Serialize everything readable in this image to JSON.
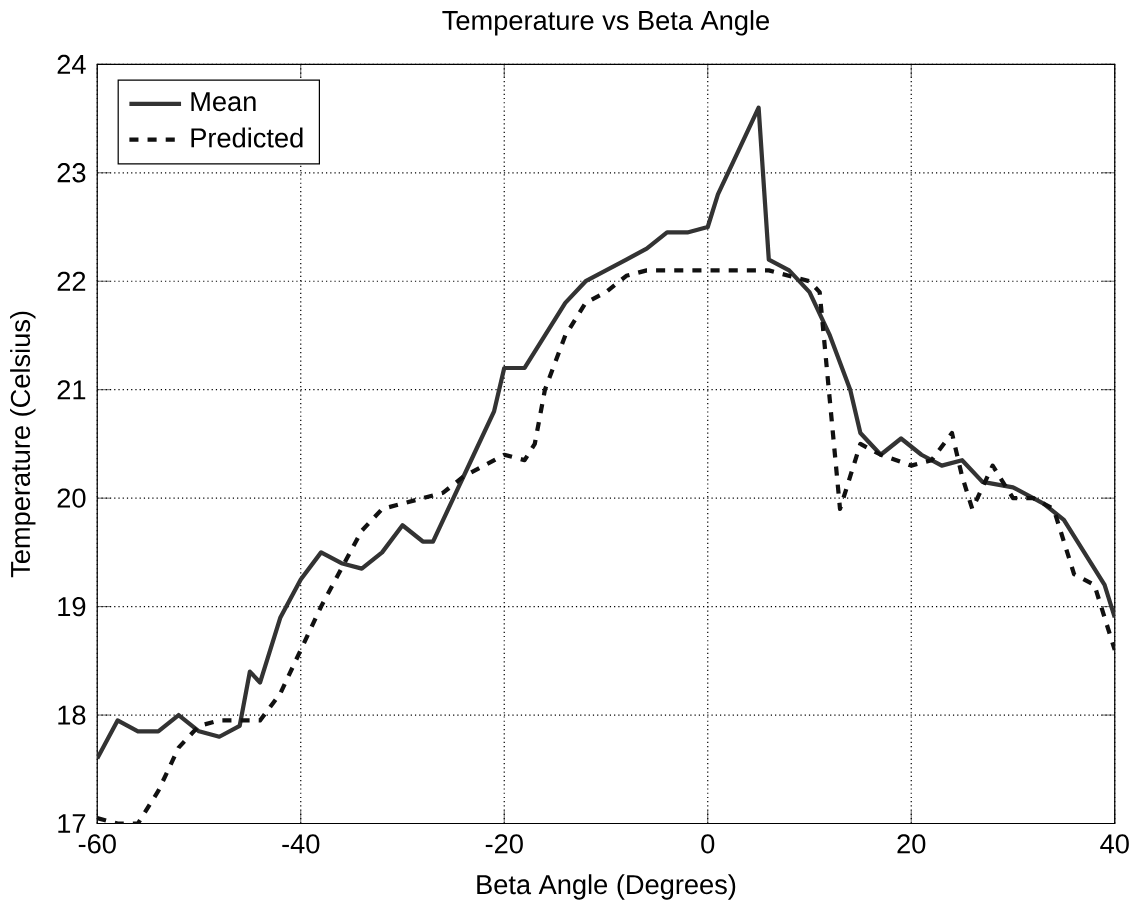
{
  "chart_data": {
    "type": "line",
    "title": "Temperature vs Beta Angle",
    "xlabel": "Beta Angle (Degrees)",
    "ylabel": "Temperature (Celsius)",
    "xlim": [
      -60,
      40
    ],
    "xticks": [
      -60,
      -40,
      -20,
      0,
      20,
      40
    ],
    "ylim": [
      17,
      24
    ],
    "yticks": [
      17,
      18,
      19,
      20,
      21,
      22,
      23,
      24
    ],
    "grid": true,
    "legend": "top left",
    "series": [
      {
        "name": "Mean",
        "color": "#333333",
        "line_style": "solid",
        "x": [
          -60,
          -58,
          -56,
          -54,
          -52,
          -50,
          -48,
          -46,
          -45,
          -44,
          -42,
          -40,
          -38,
          -36,
          -34,
          -32,
          -30,
          -28,
          -27,
          -25,
          -23,
          -21,
          -20,
          -18,
          -16,
          -14,
          -12,
          -10,
          -8,
          -6,
          -4,
          -2,
          0,
          1,
          3,
          5,
          6,
          8,
          10,
          12,
          14,
          15,
          17,
          19,
          21,
          23,
          25,
          27,
          30,
          33,
          35,
          37,
          39,
          40
        ],
        "values": [
          17.6,
          17.95,
          17.85,
          17.85,
          18.0,
          17.85,
          17.8,
          17.9,
          18.4,
          18.3,
          18.9,
          19.25,
          19.5,
          19.4,
          19.35,
          19.5,
          19.75,
          19.6,
          19.6,
          20.0,
          20.4,
          20.8,
          21.2,
          21.2,
          21.5,
          21.8,
          22.0,
          22.1,
          22.2,
          22.3,
          22.45,
          22.45,
          22.5,
          22.8,
          23.2,
          23.6,
          22.2,
          22.1,
          21.9,
          21.5,
          21.0,
          20.6,
          20.4,
          20.55,
          20.4,
          20.3,
          20.35,
          20.15,
          20.1,
          19.95,
          19.8,
          19.5,
          19.2,
          18.9
        ]
      },
      {
        "name": "Predicted",
        "color": "#111111",
        "line_style": "dashed",
        "x": [
          -60,
          -58,
          -56,
          -54,
          -52,
          -50,
          -48,
          -46,
          -44,
          -42,
          -40,
          -38,
          -36,
          -34,
          -32,
          -30,
          -28,
          -26,
          -24,
          -22,
          -20,
          -18,
          -17,
          -16,
          -14,
          -12,
          -10,
          -8,
          -6,
          0,
          6,
          10,
          11,
          12,
          13,
          14,
          15,
          17,
          20,
          22,
          24,
          25,
          26,
          28,
          30,
          32,
          34,
          36,
          38,
          40
        ],
        "values": [
          17.05,
          17.0,
          17.0,
          17.3,
          17.7,
          17.9,
          17.95,
          17.95,
          17.95,
          18.2,
          18.6,
          19.0,
          19.35,
          19.7,
          19.9,
          19.95,
          20.0,
          20.05,
          20.2,
          20.3,
          20.4,
          20.35,
          20.5,
          21.0,
          21.5,
          21.8,
          21.9,
          22.05,
          22.1,
          22.1,
          22.1,
          22.0,
          21.9,
          20.9,
          19.9,
          20.2,
          20.5,
          20.4,
          20.3,
          20.35,
          20.6,
          20.2,
          19.9,
          20.3,
          20.0,
          20.0,
          19.9,
          19.3,
          19.2,
          18.6
        ]
      }
    ]
  }
}
